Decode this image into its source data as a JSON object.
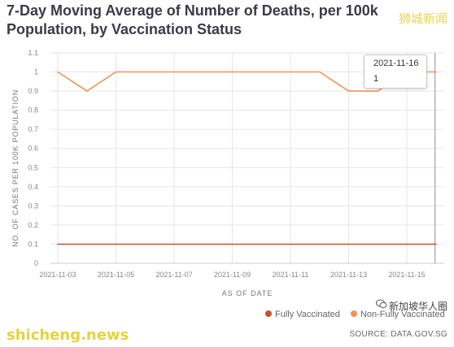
{
  "title": "7-Day Moving Average of Number of Deaths, per 100k Population, by Vaccination Status",
  "watermarks": {
    "top_right": "狮城新闻",
    "bottom_left": "shicheng.news",
    "bottom_right": "新加坡华人圈"
  },
  "source": "SOURCE: DATA.GOV.SG",
  "tooltip": {
    "date": "2021-11-16",
    "value": "1"
  },
  "colors": {
    "fully": "#c0542c",
    "non_fully": "#f39255",
    "grid": "#e6e6e6",
    "cursor": "#9a8899"
  },
  "chart_data": {
    "type": "line",
    "title": "7-Day Moving Average of Number of Deaths, per 100k Population, by Vaccination Status",
    "xlabel": "AS OF DATE",
    "ylabel": "NO. OF CASES PER 100K POPULATION",
    "ylim": [
      0,
      1.1
    ],
    "y_ticks": [
      "0",
      "0.1",
      "0.2",
      "0.3",
      "0.4",
      "0.5",
      "0.6",
      "0.7",
      "0.8",
      "0.9",
      "1",
      "1.1"
    ],
    "x_ticks": [
      "2021-11-03",
      "2021-11-05",
      "2021-11-07",
      "2021-11-09",
      "2021-11-11",
      "2021-11-13",
      "2021-11-15"
    ],
    "x": [
      "2021-11-03",
      "2021-11-04",
      "2021-11-05",
      "2021-11-06",
      "2021-11-07",
      "2021-11-08",
      "2021-11-09",
      "2021-11-10",
      "2021-11-11",
      "2021-11-12",
      "2021-11-13",
      "2021-11-14",
      "2021-11-15",
      "2021-11-16"
    ],
    "series": [
      {
        "name": "Fully Vaccinated",
        "color": "#c0542c",
        "values": [
          0.1,
          0.1,
          0.1,
          0.1,
          0.1,
          0.1,
          0.1,
          0.1,
          0.1,
          0.1,
          0.1,
          0.1,
          0.1,
          0.1
        ]
      },
      {
        "name": "Non-Fully Vaccinated",
        "color": "#f39255",
        "values": [
          1,
          0.9,
          1,
          1,
          1,
          1,
          1,
          1,
          1,
          1,
          0.9,
          0.9,
          1,
          1
        ]
      }
    ],
    "grid": true,
    "legend_position": "bottom-right",
    "highlight_x": "2021-11-16"
  }
}
